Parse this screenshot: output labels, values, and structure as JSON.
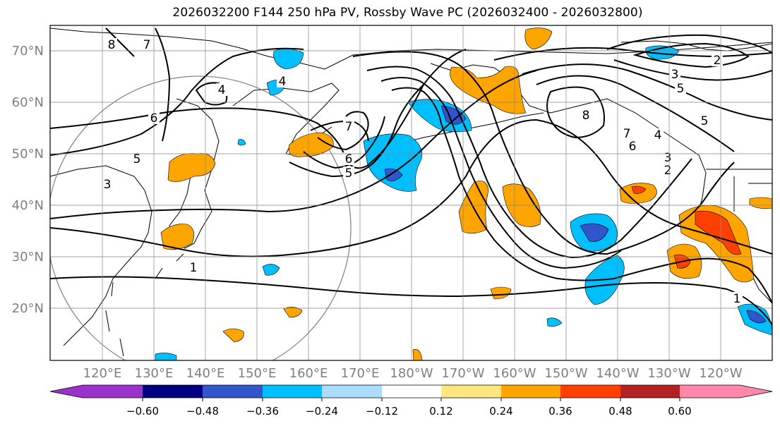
{
  "title": "2026032200 F144 250 hPa PV, Rossby Wave PC (2026032400 - 2026032800)",
  "lat_labels": [
    "70°N",
    "60°N",
    "50°N",
    "40°N",
    "30°N",
    "20°N"
  ],
  "lon_labels": [
    "120°E",
    "130°E",
    "140°E",
    "150°E",
    "160°E",
    "170°E",
    "180°W",
    "170°W",
    "160°W",
    "150°W",
    "140°W",
    "130°W",
    "120°W"
  ],
  "colorbar": {
    "colors": [
      "#9933cc",
      "#000080",
      "#3355cc",
      "#00bfff",
      "#aaddff",
      "#ffffff",
      "#ffe680",
      "#ffa500",
      "#ff4000",
      "#b22222",
      "#ff88aa"
    ],
    "tick_labels": [
      "−0.60",
      "−0.48",
      "−0.36",
      "−0.24",
      "−0.12",
      "0.12",
      "0.24",
      "0.36",
      "0.48",
      "0.60"
    ]
  },
  "contour_labels": [
    "8",
    "7",
    "6",
    "5",
    "4",
    "3",
    "1",
    "7",
    "6",
    "5",
    "4",
    "8",
    "7",
    "6",
    "5",
    "4",
    "3",
    "2",
    "5",
    "3",
    "2",
    "1"
  ]
}
